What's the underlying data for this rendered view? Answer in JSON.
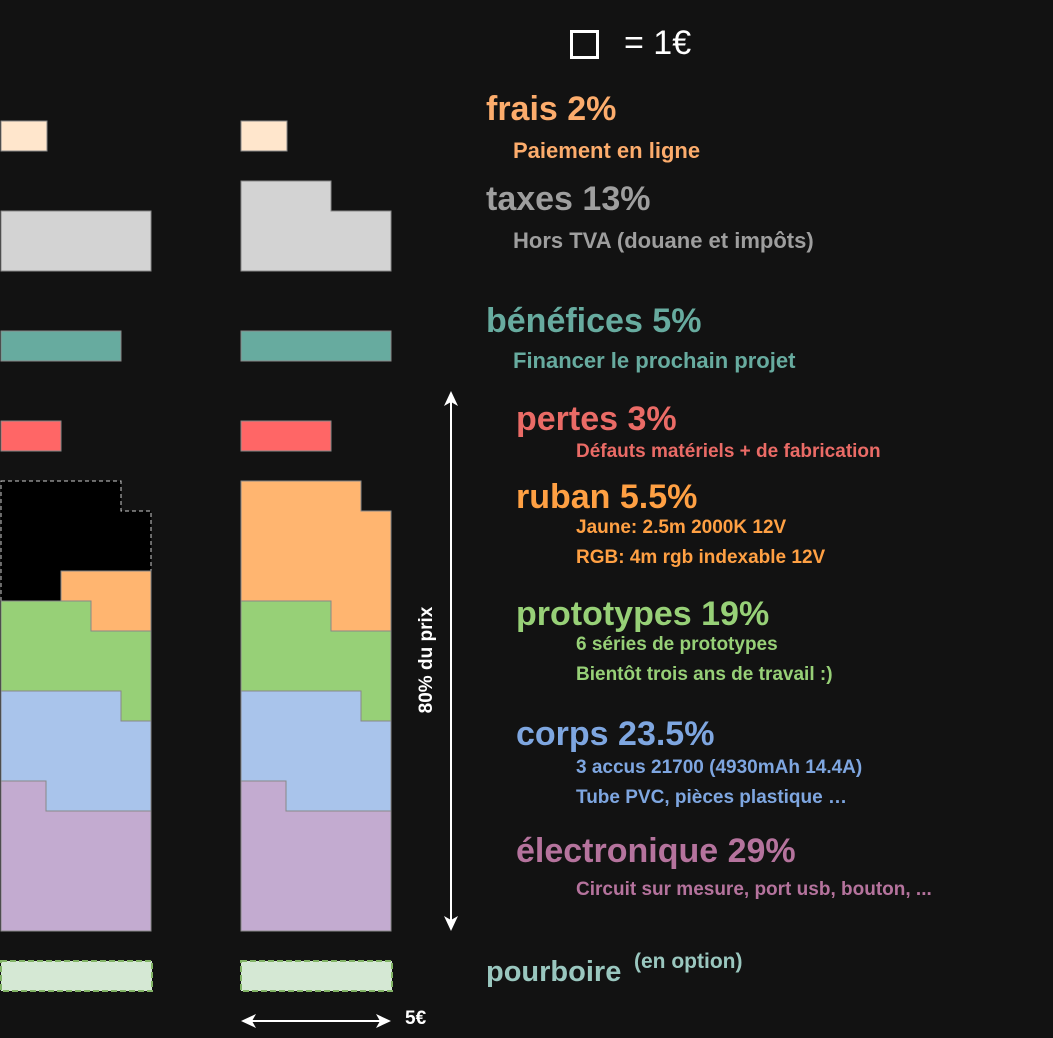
{
  "legend": {
    "text": "= 1€"
  },
  "scale": {
    "label": "5€"
  },
  "range": {
    "label": "80% du prix"
  },
  "sections": [
    {
      "key": "frais",
      "title": "frais 2%",
      "color": "#fcac6c",
      "lines": [
        "Paiement en ligne"
      ]
    },
    {
      "key": "taxes",
      "title": "taxes 13%",
      "color": "#9e9e9e",
      "lines": [
        "Hors TVA (douane et impôts)"
      ]
    },
    {
      "key": "benefices",
      "title": "bénéfices 5%",
      "color": "#67ab9f",
      "lines": [
        "Financer le prochain projet"
      ]
    },
    {
      "key": "pertes",
      "title": "pertes 3%",
      "color": "#ea6b66",
      "lines": [
        "Défauts matériels + de fabrication"
      ]
    },
    {
      "key": "ruban",
      "title": "ruban 5.5%",
      "color": "#ffa043",
      "lines": [
        "Jaune: 2.5m 2000K 12V",
        "RGB: 4m rgb indexable 12V"
      ]
    },
    {
      "key": "prototypes",
      "title": "prototypes 19%",
      "color": "#97d077",
      "lines": [
        "6 séries de prototypes",
        "Bientôt trois ans de travail :)"
      ]
    },
    {
      "key": "corps",
      "title": "corps 23.5%",
      "color": "#7ea6e0",
      "lines": [
        "3 accus 21700 (4930mAh 14.4A)",
        "Tube PVC, pièces plastique …"
      ]
    },
    {
      "key": "electronique",
      "title": "électronique 29%",
      "color": "#b5739d",
      "lines": [
        "Circuit sur mesure, port usb, bouton, ..."
      ]
    }
  ],
  "tip": {
    "title": "pourboire",
    "note": "(en option)",
    "color": "#9ac7bf"
  },
  "fills": {
    "frais": "#ffe6cc",
    "taxes": "#d3d3d3",
    "benefices": "#67ab9f",
    "pertes": "#ff6666",
    "ruban": "#ffb570",
    "prototypes": "#97d077",
    "corps": "#a9c4eb",
    "electronique": "#c3abd0",
    "pourboire": "#d5e8d4",
    "pourboire_border": "#82b366",
    "missing": "#000000",
    "missing_border": "#cccccc"
  }
}
